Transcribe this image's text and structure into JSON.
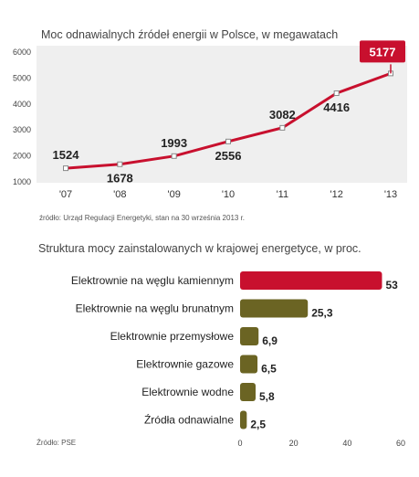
{
  "chart_data": [
    {
      "type": "line",
      "title": "Moc odnawialnych źródeł energii w Polsce, w megawatach",
      "categories": [
        "'07",
        "'08",
        "'09",
        "'10",
        "'11",
        "'12",
        "'13"
      ],
      "values": [
        1524,
        1678,
        1993,
        2556,
        3082,
        4416,
        5177
      ],
      "value_labels": [
        "1524",
        "1678",
        "1993",
        "2556",
        "3082",
        "4416",
        "5177"
      ],
      "y_ticks": [
        "6000",
        "5000",
        "4000",
        "3000",
        "2000",
        "1000"
      ],
      "ylim": [
        1000,
        6000
      ],
      "highlight_index": 6,
      "source": "źródło: Urząd Regulacji Energetyki, stan na 30 września 2013 r.",
      "grid": false,
      "colors": {
        "line": "#c8102e",
        "panel": "#efefef",
        "highlight": "#c8102e"
      }
    },
    {
      "type": "bar",
      "orientation": "horizontal",
      "title": "Struktura mocy zainstalowanych w krajowej energetyce, w proc.",
      "categories": [
        "Elektrownie na węglu kamiennym",
        "Elektrownie na węglu brunatnym",
        "Elektrownie przemysłowe",
        "Elektrownie gazowe",
        "Elektrownie wodne",
        "Źródła odnawialne"
      ],
      "values": [
        53,
        25.3,
        6.9,
        6.5,
        5.8,
        2.5
      ],
      "value_labels": [
        "53",
        "25,3",
        "6,9",
        "6,5",
        "5,8",
        "2,5"
      ],
      "x_ticks": [
        "0",
        "20",
        "40",
        "60"
      ],
      "xlim": [
        0,
        60
      ],
      "source": "Źródło: PSE",
      "grid": false,
      "colors": {
        "first": "#c8102e",
        "rest": "#6b6423"
      }
    }
  ]
}
